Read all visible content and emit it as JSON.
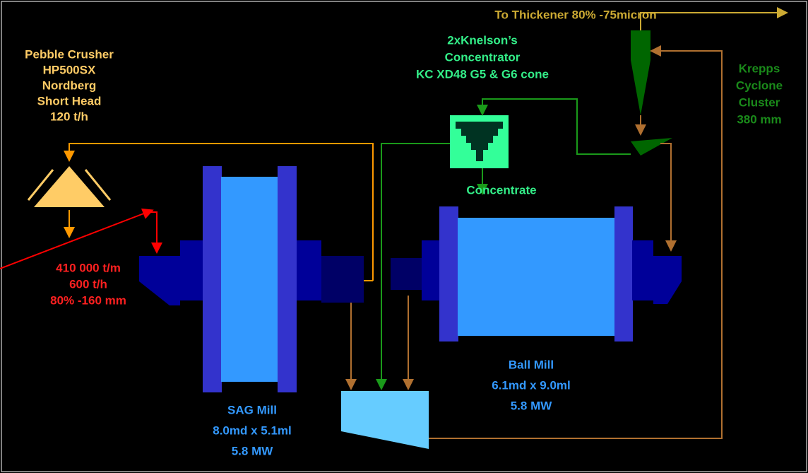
{
  "labels": {
    "crusher": [
      "Pebble Crusher",
      "HP500SX",
      "Nordberg",
      "Short Head",
      "120 t/h"
    ],
    "thickener": "To Thickener 80% -75micron",
    "knelson": [
      "2xKnelson’s",
      "Concentrator",
      "KC XD48 G5 & G6 cone"
    ],
    "cyclone": [
      "Krepps",
      "Cyclone",
      "Cluster",
      "380 mm"
    ],
    "concentrate": "Concentrate",
    "feed": [
      "410 000 t/m",
      "600 t/h",
      "80% -160 mm"
    ],
    "sag_mill": [
      "SAG Mill",
      "8.0md x 5.1ml",
      "5.8 MW"
    ],
    "ball_mill": [
      "Ball Mill",
      "6.1md x 9.0ml",
      "5.8 MW"
    ]
  }
}
